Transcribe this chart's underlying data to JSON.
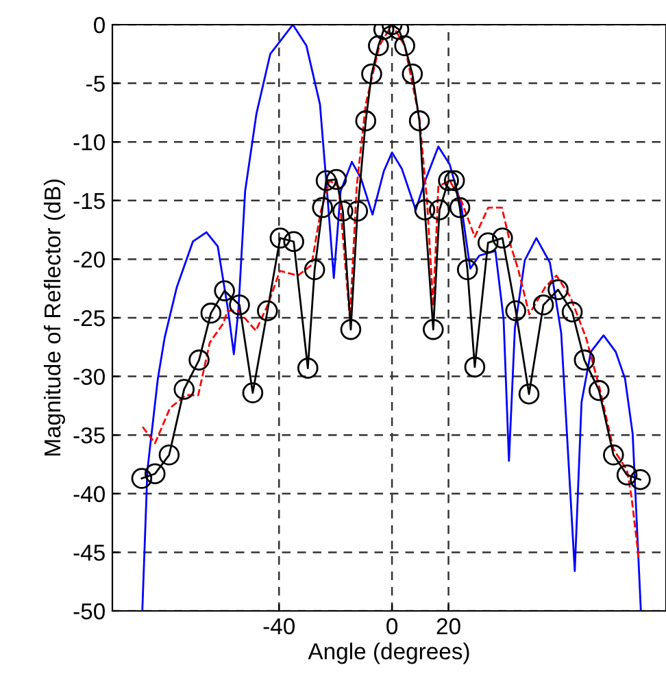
{
  "chart_data": {
    "type": "line",
    "xlabel": "Angle (degrees)",
    "ylabel": "Magnitude of Reflector (dB)",
    "xlim": [
      -99,
      97
    ],
    "ylim": [
      -50,
      0
    ],
    "xticks": [
      -40,
      0,
      20
    ],
    "yticks": [
      0,
      -5,
      -10,
      -15,
      -20,
      -25,
      -30,
      -35,
      -40,
      -45,
      -50
    ],
    "grid": true,
    "legend": false,
    "series": [
      {
        "color": "#0000ff",
        "marker": "none",
        "line_style": "solid",
        "x": [
          -88.4,
          -86.6,
          -82.9,
          -80.5,
          -76.2,
          -70.5,
          -65.7,
          -61.7,
          -58,
          -56,
          -54.4,
          -52,
          -48,
          -43.1,
          -35.1,
          -30.3,
          -25.5,
          -23,
          -20.6,
          -18.2,
          -14.2,
          -11,
          -6.9,
          -2.9,
          0,
          3.5,
          8.4,
          11.6,
          16.4,
          20.4,
          24.5,
          27.7,
          30.9,
          36.6,
          39.5,
          41.4,
          43.5,
          47,
          51.1,
          55.9,
          59.9,
          64.7,
          67.1,
          70.4,
          74.9,
          79.2,
          82.5,
          85.2,
          88.1
        ],
        "values": [
          -50,
          -38,
          -30.2,
          -26.7,
          -22.4,
          -18.5,
          -17.7,
          -18.9,
          -24.4,
          -28.1,
          -24.4,
          -14.2,
          -7.6,
          -2.5,
          0,
          -1.8,
          -6.8,
          -14.2,
          -21.6,
          -14.2,
          -11.7,
          -13.1,
          -16.2,
          -12.5,
          -10.9,
          -12.3,
          -15.8,
          -13.4,
          -10.4,
          -11.9,
          -15.4,
          -20.8,
          -19.7,
          -19.3,
          -25.1,
          -37.2,
          -25.9,
          -20.1,
          -18.2,
          -20.3,
          -26.3,
          -46.6,
          -32.2,
          -27.9,
          -26.5,
          -27.9,
          -30.2,
          -34.9,
          -50
        ]
      },
      {
        "color": "#ff0000",
        "marker": "none",
        "line_style": "dashed",
        "x": [
          -88.3,
          -83.9,
          -78.6,
          -73,
          -68.6,
          -64.5,
          -59.8,
          -58.2,
          -54.4,
          -48.2,
          -43.8,
          -39.7,
          -33.3,
          -28.5,
          -25.3,
          -22.1,
          -18.9,
          -14.9,
          -12.5,
          -9.3,
          -4.5,
          0,
          4.5,
          9.7,
          12.4,
          14.6,
          16.4,
          20.4,
          24.5,
          29.3,
          34.1,
          38.9,
          42.1,
          44.6,
          48.6,
          54.2,
          58.2,
          63.1,
          68.7,
          73.5,
          78.4,
          83.2,
          84.8,
          87.3
        ],
        "values": [
          -34.3,
          -35.7,
          -32.7,
          -31.6,
          -31.6,
          -27.1,
          -25.5,
          -24.4,
          -24.4,
          -26.1,
          -23.8,
          -21,
          -21.4,
          -20.5,
          -16,
          -13.3,
          -13.8,
          -25.1,
          -13.8,
          -6.8,
          -1.8,
          0,
          -1.8,
          -8,
          -15,
          -24,
          -13.8,
          -13.3,
          -15,
          -18.1,
          -15.6,
          -15.6,
          -18.9,
          -20.8,
          -24.7,
          -22.4,
          -21.4,
          -23.2,
          -26.7,
          -31,
          -36.2,
          -38,
          -40.3,
          -45.4
        ]
      },
      {
        "color": "#000000",
        "marker": "circle",
        "line_style": "solid",
        "x": [
          -88.6,
          -83.9,
          -78.9,
          -73.6,
          -68.3,
          -64.1,
          -59.3,
          -54,
          -49.3,
          -44.1,
          -39.6,
          -34.8,
          -29.8,
          -27.4,
          -24.6,
          -23.3,
          -19.7,
          -17.4,
          -14.6,
          -12.2,
          -9.3,
          -7.2,
          -4.8,
          -2.9,
          0,
          2.4,
          4.5,
          7.2,
          9.7,
          11.6,
          14.6,
          16.8,
          20,
          22.1,
          24,
          26.7,
          29.3,
          34,
          39.1,
          43.8,
          48.5,
          53.6,
          58.8,
          63.8,
          68.1,
          73.3,
          78.4,
          83.2,
          87.9
        ],
        "values": [
          -38.7,
          -38.3,
          -36.7,
          -31.1,
          -28.6,
          -24.6,
          -22.7,
          -23.9,
          -31.4,
          -24.4,
          -18.2,
          -18.5,
          -29.3,
          -20.9,
          -15.6,
          -13.3,
          -13.2,
          -15.9,
          -26,
          -15.9,
          -8.2,
          -4.2,
          -1.8,
          -0.4,
          0,
          -0.4,
          -1.8,
          -4.2,
          -8.2,
          -15.8,
          -26,
          -15.8,
          -13.3,
          -13.3,
          -15.6,
          -20.9,
          -29.2,
          -18.6,
          -18.2,
          -24.4,
          -31.5,
          -23.9,
          -22.6,
          -24.5,
          -28.6,
          -31.2,
          -36.7,
          -38.4,
          -38.8
        ]
      }
    ]
  }
}
